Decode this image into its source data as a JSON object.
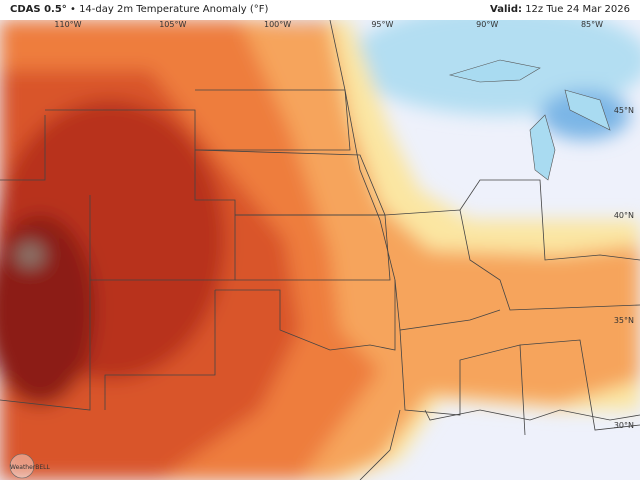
{
  "header": {
    "model": "CDAS 0.5°",
    "separator": "•",
    "title": "14-day 2m Temperature Anomaly (°F)",
    "valid_label": "Valid:",
    "valid_time": "12z Tue 24 Mar 2026"
  },
  "axes": {
    "lon_labels": [
      "110°W",
      "105°W",
      "100°W",
      "95°W",
      "90°W",
      "85°W"
    ],
    "lat_labels": [
      "45°N",
      "40°N",
      "35°N",
      "30°N"
    ]
  },
  "logo": "WeatherBELL"
}
